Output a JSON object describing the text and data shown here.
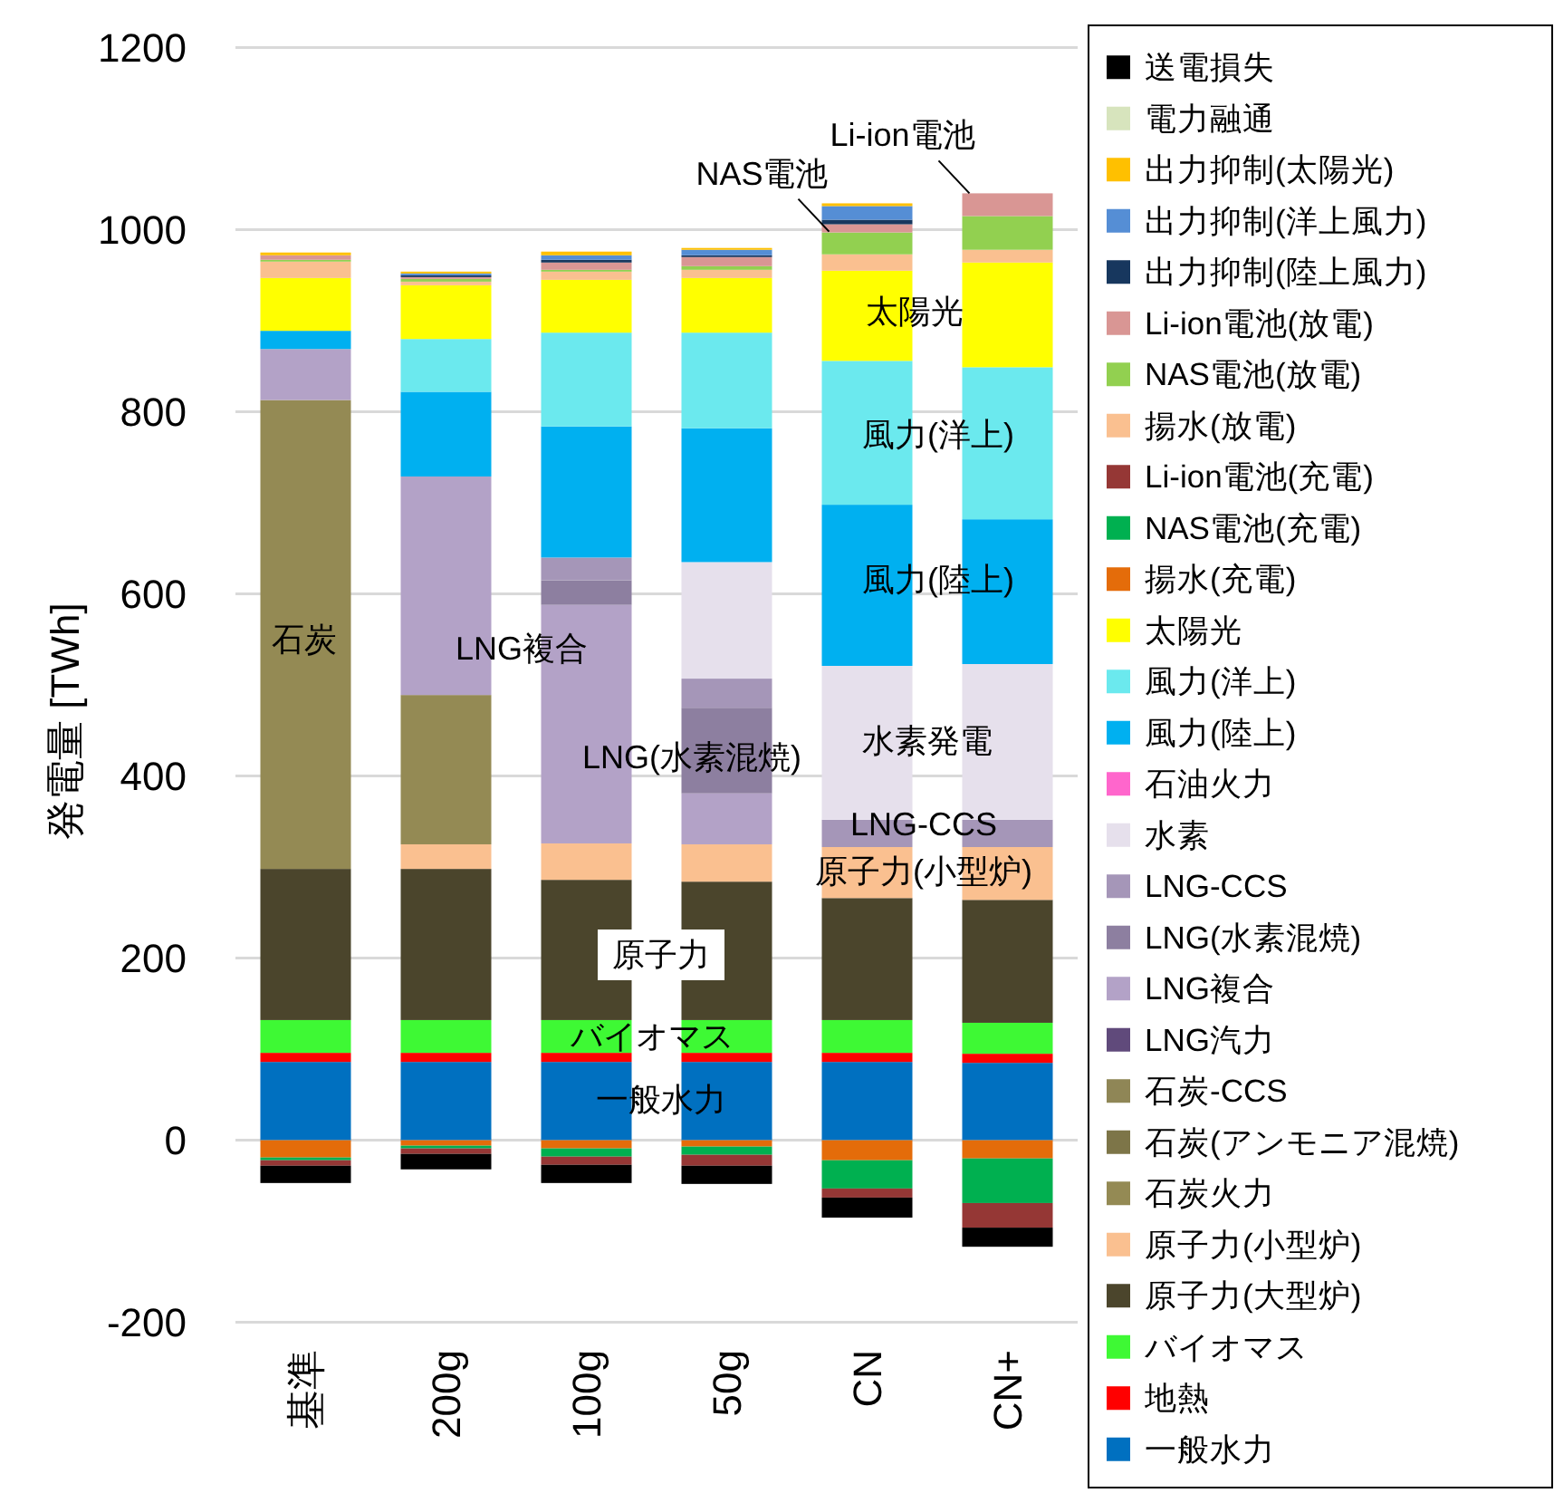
{
  "chart_data": {
    "type": "bar",
    "stacked": true,
    "ylabel": "発電量 [TWh]",
    "categories": [
      "基準",
      "200g",
      "100g",
      "50g",
      "CN",
      "CN+"
    ],
    "ylim": [
      -200,
      1200
    ],
    "yticks": [
      -200,
      0,
      200,
      400,
      600,
      800,
      1000,
      1200
    ],
    "grid": "y",
    "legend": "right",
    "series": [
      {
        "name": "一般水力",
        "color": "#0070c0",
        "values": [
          86,
          86,
          86,
          86,
          86,
          85
        ]
      },
      {
        "name": "地熱",
        "color": "#ff0000",
        "values": [
          10,
          10,
          10,
          10,
          10,
          10
        ]
      },
      {
        "name": "バイオマス",
        "color": "#3ef934",
        "values": [
          36,
          36,
          36,
          36,
          36,
          34
        ]
      },
      {
        "name": "原子力(大型炉)",
        "color": "#4b452c",
        "values": [
          166,
          166,
          154,
          152,
          134,
          135
        ]
      },
      {
        "name": "原子力(小型炉)",
        "color": "#fac090",
        "values": [
          0,
          27,
          40,
          41,
          56,
          58
        ]
      },
      {
        "name": "石炭火力",
        "color": "#948a54",
        "values": [
          515,
          164,
          0,
          0,
          0,
          0
        ]
      },
      {
        "name": "石炭(アンモニア混焼)",
        "color": "#7d7548",
        "values": [
          0,
          0,
          0,
          0,
          0,
          0
        ]
      },
      {
        "name": "石炭-CCS",
        "color": "#8f8656",
        "values": [
          0,
          0,
          0,
          0,
          0,
          0
        ]
      },
      {
        "name": "LNG汽力",
        "color": "#604a7b",
        "values": [
          0,
          0,
          0,
          0,
          0,
          0
        ]
      },
      {
        "name": "LNG複合",
        "color": "#b3a2c7",
        "values": [
          56,
          240,
          262,
          56,
          0,
          0
        ]
      },
      {
        "name": "LNG(水素混焼)",
        "color": "#8d7fa0",
        "values": [
          0,
          0,
          27,
          94,
          0,
          0
        ]
      },
      {
        "name": "LNG-CCS",
        "color": "#a596b8",
        "values": [
          0,
          0,
          25,
          32,
          30,
          30
        ]
      },
      {
        "name": "水素",
        "color": "#e6e0ec",
        "values": [
          0,
          0,
          0,
          128,
          169,
          171
        ]
      },
      {
        "name": "石油火力",
        "color": "#ff66cc",
        "values": [
          0,
          0,
          0,
          0,
          0,
          0
        ]
      },
      {
        "name": "風力(陸上)",
        "color": "#00b0f0",
        "values": [
          20,
          93,
          144,
          147,
          177,
          159
        ]
      },
      {
        "name": "風力(洋上)",
        "color": "#6be9ee",
        "values": [
          0,
          58,
          103,
          105,
          158,
          167
        ]
      },
      {
        "name": "太陽光",
        "color": "#ffff00",
        "values": [
          58,
          59,
          58,
          60,
          99,
          115
        ]
      },
      {
        "name": "揚水(充電)",
        "color": "#e46c0a",
        "values": [
          -19,
          -6,
          -9,
          -7,
          -22,
          -20
        ]
      },
      {
        "name": "NAS電池(充電)",
        "color": "#00b050",
        "values": [
          -3,
          -3,
          -9,
          -9,
          -31,
          -49
        ]
      },
      {
        "name": "Li-ion電池(充電)",
        "color": "#953735",
        "values": [
          -6,
          -6,
          -9,
          -12,
          -10,
          -27
        ]
      },
      {
        "name": "揚水(放電)",
        "color": "#fac090",
        "values": [
          18,
          4,
          9,
          9,
          18,
          14
        ]
      },
      {
        "name": "NAS電池(放電)",
        "color": "#92d050",
        "values": [
          2,
          3,
          2,
          4,
          24,
          37
        ]
      },
      {
        "name": "Li-ion電池(放電)",
        "color": "#d99694",
        "values": [
          5,
          2,
          8,
          10,
          9,
          25
        ]
      },
      {
        "name": "出力抑制(陸上風力)",
        "color": "#17375e",
        "values": [
          0,
          2,
          3,
          2,
          5,
          0
        ]
      },
      {
        "name": "出力抑制(洋上風力)",
        "color": "#558ed5",
        "values": [
          0,
          2,
          5,
          6,
          15,
          0
        ]
      },
      {
        "name": "出力抑制(太陽光)",
        "color": "#ffc000",
        "values": [
          3,
          2,
          4,
          2,
          3,
          0
        ]
      },
      {
        "name": "電力融通",
        "color": "#d7e4bd",
        "values": [
          0,
          0,
          0,
          0,
          0,
          0
        ]
      },
      {
        "name": "送電損失",
        "color": "#000000",
        "values": [
          -19,
          -17,
          -20,
          -20,
          -22,
          -21
        ]
      }
    ],
    "annotations": [
      "石炭",
      "LNG複合",
      "LNG(水素混焼)",
      "水素発電",
      "LNG-CCS",
      "原子力(小型炉)",
      "太陽光",
      "風力(洋上)",
      "風力(陸上)",
      "原子力",
      "バイオマス",
      "一般水力",
      {
        "text": "NAS電池",
        "x": "CN",
        "y": 998
      },
      {
        "text": "Li-ion電池",
        "x": "CN+",
        "y": 1040
      }
    ]
  }
}
